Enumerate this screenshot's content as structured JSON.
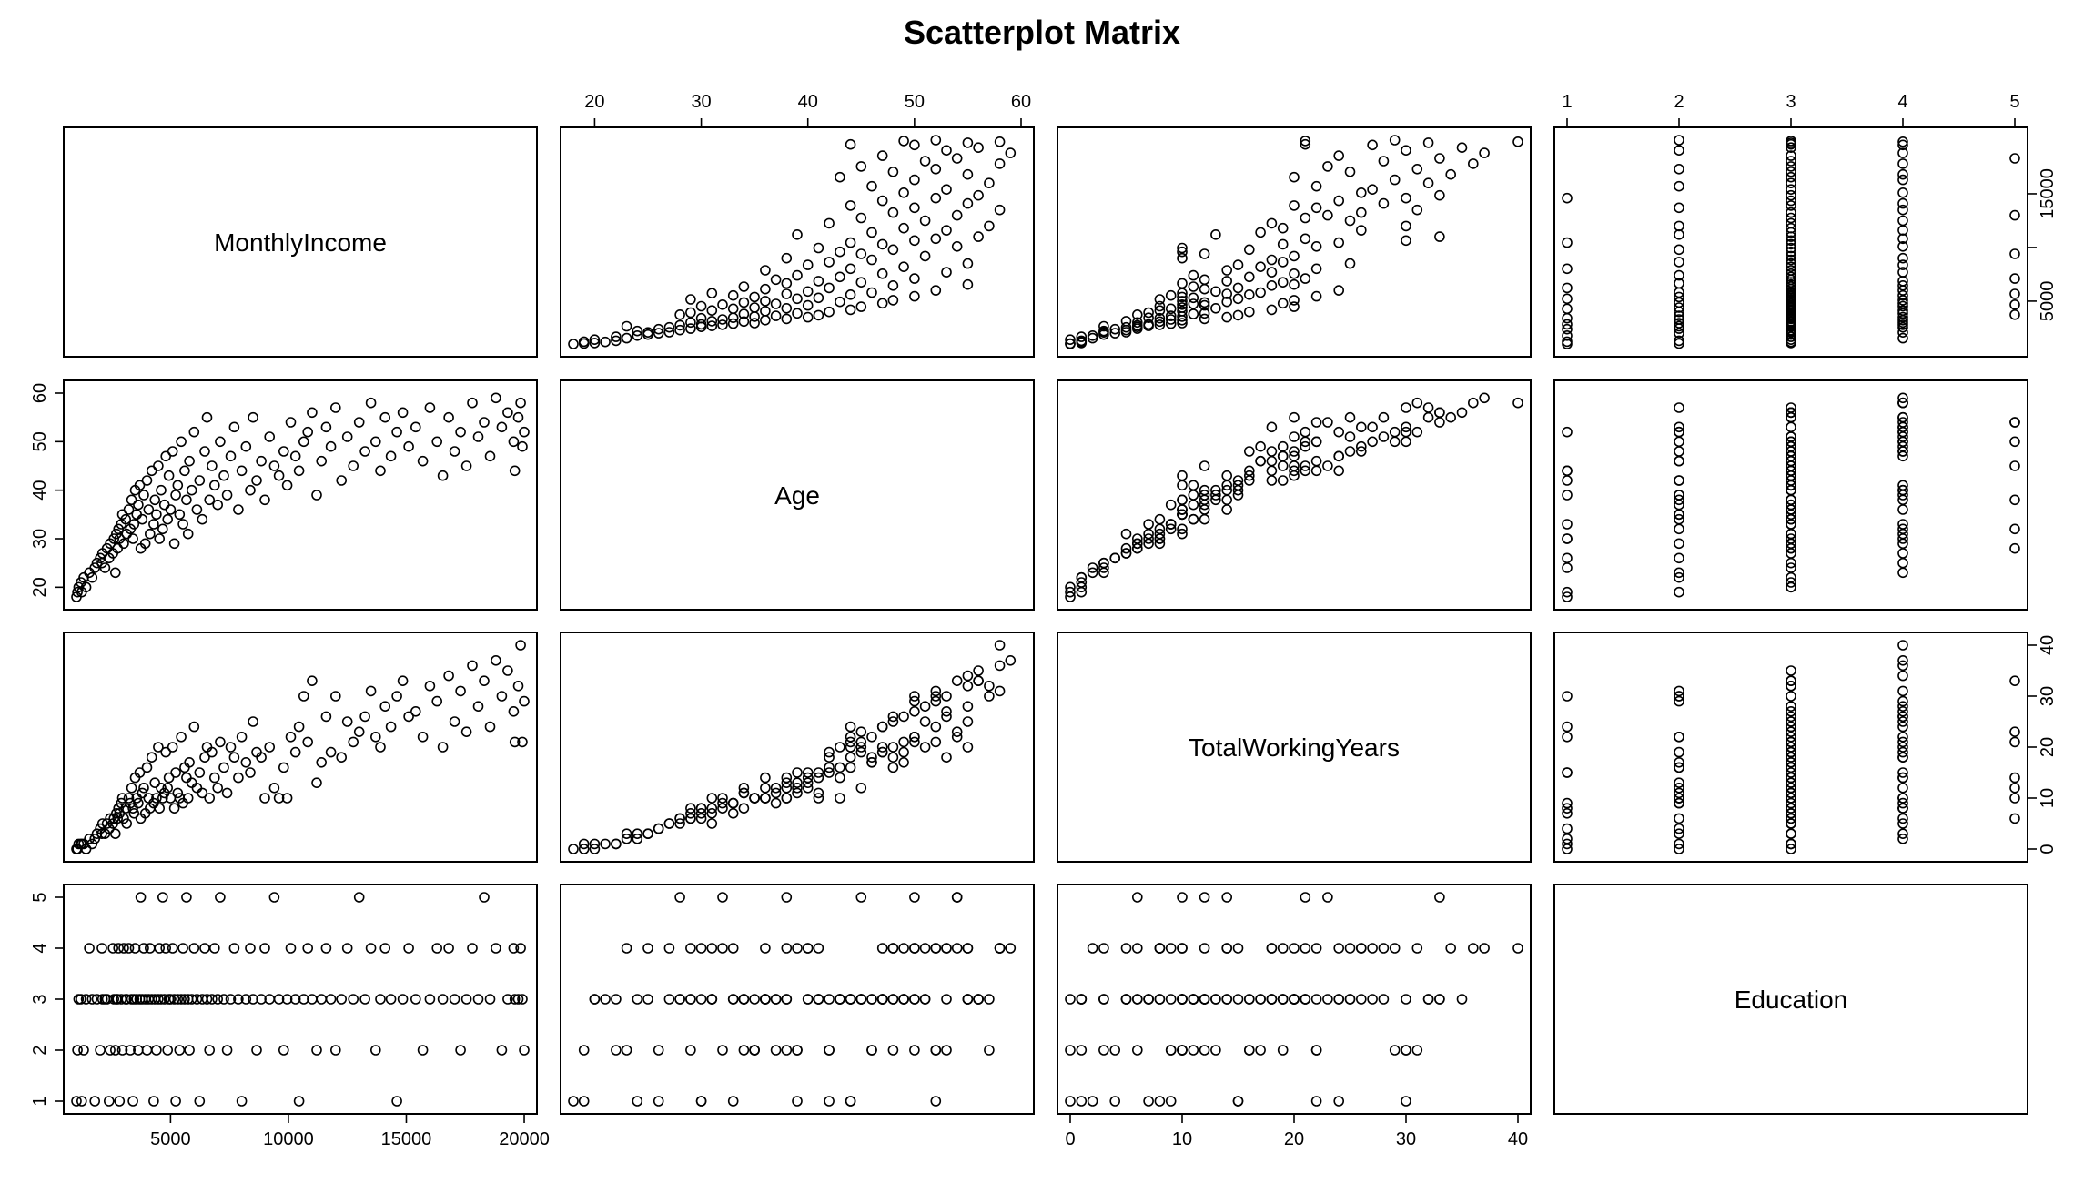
{
  "chart_data": {
    "type": "scatter",
    "title": "Scatterplot Matrix",
    "variables": [
      {
        "name": "MonthlyIncome",
        "range": [
          1009,
          19999
        ],
        "ticks": [
          5000,
          10000,
          15000,
          20000
        ],
        "y_ticks": [
          5000,
          10000,
          15000
        ],
        "y_tick_labels": [
          "5000",
          "",
          "15000"
        ]
      },
      {
        "name": "Age",
        "range": [
          18,
          60
        ],
        "ticks": [
          20,
          30,
          40,
          50,
          60
        ],
        "y_ticks": [
          20,
          30,
          40,
          50,
          60
        ],
        "y_tick_labels": [
          "20",
          "30",
          "40",
          "50",
          "60"
        ]
      },
      {
        "name": "TotalWorkingYears",
        "range": [
          0,
          40
        ],
        "ticks": [
          0,
          10,
          20,
          30,
          40
        ],
        "y_ticks": [
          0,
          10,
          20,
          30,
          40
        ],
        "y_tick_labels": [
          "0",
          "10",
          "20",
          "30",
          "40"
        ]
      },
      {
        "name": "Education",
        "range": [
          1,
          5
        ],
        "ticks": [
          1,
          2,
          3,
          4,
          5
        ],
        "y_ticks": [
          1,
          2,
          3,
          4,
          5
        ],
        "y_tick_labels": [
          "1",
          "2",
          "3",
          "4",
          "5"
        ]
      }
    ],
    "axis_placement": {
      "top": [
        1,
        3
      ],
      "bottom": [
        0,
        2
      ],
      "left": [
        1,
        3
      ],
      "right": [
        0,
        2
      ]
    },
    "marker": "open-circle",
    "point_color": "#000000",
    "grid": false,
    "observations": {
      "columns": [
        "MonthlyIncome",
        "Age",
        "TotalWorkingYears",
        "Education"
      ],
      "rows": [
        [
          1009,
          18,
          0,
          1
        ],
        [
          1051,
          19,
          0,
          2
        ],
        [
          1102,
          20,
          1,
          3
        ],
        [
          1200,
          21,
          1,
          3
        ],
        [
          1232,
          19,
          1,
          1
        ],
        [
          1316,
          22,
          1,
          2
        ],
        [
          1420,
          20,
          0,
          3
        ],
        [
          1555,
          23,
          2,
          4
        ],
        [
          1675,
          22,
          1,
          3
        ],
        [
          1790,
          24,
          2,
          1
        ],
        [
          1878,
          25,
          3,
          3
        ],
        [
          2018,
          26,
          4,
          2
        ],
        [
          2090,
          25,
          3,
          4
        ],
        [
          2115,
          27,
          5,
          3
        ],
        [
          2220,
          24,
          3,
          3
        ],
        [
          2306,
          28,
          5,
          3
        ],
        [
          2389,
          26,
          4,
          1
        ],
        [
          2440,
          29,
          6,
          2
        ],
        [
          2559,
          27,
          5,
          4
        ],
        [
          2600,
          30,
          6,
          3
        ],
        [
          2661,
          23,
          3,
          2
        ],
        [
          2700,
          31,
          7,
          3
        ],
        [
          2755,
          28,
          6,
          3
        ],
        [
          2794,
          32,
          8,
          4
        ],
        [
          2836,
          30,
          7,
          1
        ],
        [
          2911,
          33,
          9,
          3
        ],
        [
          2960,
          35,
          10,
          2
        ],
        [
          3017,
          29,
          6,
          4
        ],
        [
          3102,
          34,
          8,
          3
        ],
        [
          3140,
          31,
          5,
          3
        ],
        [
          3230,
          36,
          10,
          4
        ],
        [
          3294,
          32,
          9,
          2
        ],
        [
          3348,
          38,
          12,
          3
        ],
        [
          3407,
          30,
          8,
          1
        ],
        [
          3452,
          33,
          7,
          3
        ],
        [
          3500,
          40,
          14,
          4
        ],
        [
          3564,
          35,
          10,
          3
        ],
        [
          3629,
          37,
          9,
          2
        ],
        [
          3690,
          41,
          15,
          3
        ],
        [
          3735,
          28,
          6,
          5
        ],
        [
          3800,
          34,
          11,
          3
        ],
        [
          3867,
          39,
          12,
          4
        ],
        [
          3931,
          29,
          7,
          3
        ],
        [
          4000,
          42,
          16,
          2
        ],
        [
          4069,
          36,
          10,
          3
        ],
        [
          4127,
          31,
          8,
          4
        ],
        [
          4200,
          44,
          18,
          3
        ],
        [
          4286,
          33,
          9,
          1
        ],
        [
          4335,
          38,
          13,
          3
        ],
        [
          4400,
          35,
          10,
          2
        ],
        [
          4478,
          45,
          20,
          3
        ],
        [
          4531,
          30,
          8,
          4
        ],
        [
          4600,
          40,
          12,
          3
        ],
        [
          4668,
          32,
          10,
          5
        ],
        [
          4741,
          37,
          11,
          3
        ],
        [
          4800,
          47,
          19,
          4
        ],
        [
          4877,
          34,
          12,
          2
        ],
        [
          4930,
          43,
          14,
          3
        ],
        [
          5000,
          36,
          10,
          3
        ],
        [
          5087,
          48,
          20,
          4
        ],
        [
          5161,
          29,
          8,
          3
        ],
        [
          5220,
          39,
          15,
          1
        ],
        [
          5304,
          41,
          11,
          3
        ],
        [
          5381,
          35,
          10,
          2
        ],
        [
          5450,
          50,
          22,
          3
        ],
        [
          5530,
          33,
          9,
          4
        ],
        [
          5600,
          44,
          16,
          3
        ],
        [
          5675,
          38,
          14,
          5
        ],
        [
          5743,
          31,
          10,
          3
        ],
        [
          5800,
          46,
          17,
          2
        ],
        [
          5900,
          40,
          13,
          3
        ],
        [
          6000,
          52,
          24,
          4
        ],
        [
          6120,
          36,
          12,
          3
        ],
        [
          6230,
          42,
          15,
          1
        ],
        [
          6347,
          34,
          11,
          3
        ],
        [
          6450,
          48,
          18,
          4
        ],
        [
          6549,
          55,
          20,
          3
        ],
        [
          6652,
          38,
          10,
          2
        ],
        [
          6755,
          45,
          19,
          3
        ],
        [
          6870,
          41,
          14,
          4
        ],
        [
          7000,
          37,
          12,
          3
        ],
        [
          7104,
          50,
          21,
          5
        ],
        [
          7260,
          43,
          16,
          3
        ],
        [
          7400,
          39,
          11,
          2
        ],
        [
          7550,
          47,
          20,
          3
        ],
        [
          7700,
          53,
          18,
          4
        ],
        [
          7876,
          36,
          14,
          3
        ],
        [
          8020,
          44,
          22,
          1
        ],
        [
          8200,
          49,
          17,
          3
        ],
        [
          8380,
          40,
          15,
          4
        ],
        [
          8500,
          55,
          25,
          3
        ],
        [
          8650,
          42,
          19,
          2
        ],
        [
          8850,
          46,
          18,
          3
        ],
        [
          9000,
          38,
          10,
          4
        ],
        [
          9200,
          51,
          20,
          3
        ],
        [
          9400,
          45,
          12,
          5
        ],
        [
          9600,
          43,
          10,
          3
        ],
        [
          9800,
          48,
          16,
          2
        ],
        [
          9950,
          41,
          10,
          3
        ],
        [
          10100,
          54,
          22,
          4
        ],
        [
          10300,
          47,
          19,
          3
        ],
        [
          10450,
          44,
          24,
          1
        ],
        [
          10650,
          50,
          30,
          3
        ],
        [
          10820,
          52,
          21,
          4
        ],
        [
          11000,
          56,
          33,
          3
        ],
        [
          11200,
          39,
          13,
          2
        ],
        [
          11400,
          46,
          17,
          3
        ],
        [
          11600,
          53,
          26,
          4
        ],
        [
          11800,
          49,
          19,
          3
        ],
        [
          12000,
          57,
          30,
          2
        ],
        [
          12250,
          42,
          18,
          3
        ],
        [
          12500,
          51,
          25,
          4
        ],
        [
          12750,
          45,
          21,
          3
        ],
        [
          13000,
          54,
          23,
          5
        ],
        [
          13250,
          48,
          26,
          3
        ],
        [
          13500,
          58,
          31,
          4
        ],
        [
          13700,
          50,
          22,
          2
        ],
        [
          13900,
          44,
          20,
          3
        ],
        [
          14100,
          55,
          28,
          4
        ],
        [
          14350,
          47,
          24,
          3
        ],
        [
          14600,
          52,
          30,
          1
        ],
        [
          14850,
          56,
          33,
          3
        ],
        [
          15100,
          49,
          26,
          4
        ],
        [
          15400,
          53,
          27,
          3
        ],
        [
          15700,
          46,
          22,
          2
        ],
        [
          16000,
          57,
          32,
          3
        ],
        [
          16300,
          50,
          29,
          4
        ],
        [
          16550,
          43,
          20,
          3
        ],
        [
          16800,
          55,
          34,
          4
        ],
        [
          17050,
          48,
          25,
          3
        ],
        [
          17300,
          52,
          31,
          2
        ],
        [
          17550,
          45,
          23,
          3
        ],
        [
          17800,
          58,
          36,
          4
        ],
        [
          18050,
          51,
          28,
          3
        ],
        [
          18300,
          54,
          33,
          5
        ],
        [
          18550,
          47,
          24,
          3
        ],
        [
          18800,
          59,
          37,
          4
        ],
        [
          19050,
          53,
          30,
          2
        ],
        [
          19300,
          56,
          35,
          3
        ],
        [
          19550,
          50,
          27,
          4
        ],
        [
          19750,
          55,
          32,
          3
        ],
        [
          19850,
          58,
          40,
          4
        ],
        [
          19920,
          49,
          21,
          3
        ],
        [
          19999,
          52,
          29,
          2
        ],
        [
          19600,
          44,
          21,
          3
        ]
      ]
    }
  }
}
